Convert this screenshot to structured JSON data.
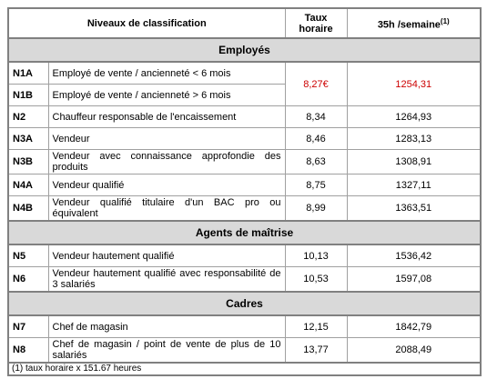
{
  "header": {
    "classification": "Niveaux de classification",
    "hourly_rate": "Taux horaire",
    "weekly": "35h /semaine",
    "weekly_note": "(1)"
  },
  "sections": [
    {
      "title": "Employés",
      "rows": [
        {
          "code": "N1A",
          "label": "Employé de vente / ancienneté < 6 mois",
          "rate": "8,27€",
          "monthly": "1254,31"
        },
        {
          "code": "N1B",
          "label": "Employé de vente / ancienneté > 6 mois"
        },
        {
          "code": "N2",
          "label": "Chauffeur responsable de l'encaissement",
          "rate": "8,34",
          "monthly": "1264,93"
        },
        {
          "code": "N3A",
          "label": "Vendeur",
          "rate": "8,46",
          "monthly": "1283,13"
        },
        {
          "code": "N3B",
          "label": "Vendeur avec connaissance approfondie des produits",
          "rate": "8,63",
          "monthly": "1308,91"
        },
        {
          "code": "N4A",
          "label": "Vendeur qualifié",
          "rate": "8,75",
          "monthly": "1327,11"
        },
        {
          "code": "N4B",
          "label": "Vendeur qualifié titulaire d'un BAC pro ou équivalent",
          "rate": "8,99",
          "monthly": "1363,51"
        }
      ]
    },
    {
      "title": "Agents de maîtrise",
      "rows": [
        {
          "code": "N5",
          "label": "Vendeur hautement qualifié",
          "rate": "10,13",
          "monthly": "1536,42"
        },
        {
          "code": "N6",
          "label": "Vendeur hautement qualifié avec responsabilité de 3 salariés",
          "rate": "10,53",
          "monthly": "1597,08"
        }
      ]
    },
    {
      "title": "Cadres",
      "rows": [
        {
          "code": "N7",
          "label": "Chef de magasin",
          "rate": "12,15",
          "monthly": "1842,79"
        },
        {
          "code": "N8",
          "label": "Chef de magasin / point de vente de plus de 10 salariés",
          "rate": "13,77",
          "monthly": "2088,49"
        }
      ]
    }
  ],
  "footnote": "(1) taux horaire x 151.67 heures"
}
